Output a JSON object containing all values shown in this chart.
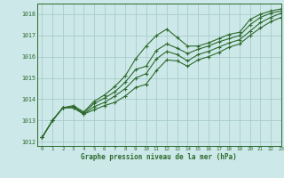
{
  "title": "Graphe pression niveau de la mer (hPa)",
  "background_color": "#cce8e8",
  "grid_color": "#aacccc",
  "line_color": "#2d6a2d",
  "marker_color": "#2d6a2d",
  "xlim": [
    -0.5,
    23
  ],
  "ylim": [
    1011.8,
    1018.5
  ],
  "xticks": [
    0,
    1,
    2,
    3,
    4,
    5,
    6,
    7,
    8,
    9,
    10,
    11,
    12,
    13,
    14,
    15,
    16,
    17,
    18,
    19,
    20,
    21,
    22,
    23
  ],
  "yticks": [
    1012,
    1013,
    1014,
    1015,
    1016,
    1017,
    1018
  ],
  "series": [
    [
      1012.2,
      1013.0,
      1013.6,
      1013.7,
      1013.4,
      1013.9,
      1014.2,
      1014.6,
      1015.1,
      1015.9,
      1016.5,
      1017.0,
      1017.3,
      1016.9,
      1016.5,
      1016.5,
      1016.65,
      1016.85,
      1017.05,
      1017.15,
      1017.75,
      1018.0,
      1018.15,
      1018.25
    ],
    [
      1012.2,
      1013.0,
      1013.6,
      1013.65,
      1013.35,
      1013.8,
      1014.05,
      1014.35,
      1014.8,
      1015.4,
      1015.55,
      1016.3,
      1016.6,
      1016.4,
      1016.15,
      1016.35,
      1016.5,
      1016.7,
      1016.85,
      1017.0,
      1017.5,
      1017.85,
      1018.05,
      1018.15
    ],
    [
      1012.2,
      1013.0,
      1013.6,
      1013.6,
      1013.3,
      1013.65,
      1013.85,
      1014.15,
      1014.5,
      1015.0,
      1015.2,
      1015.9,
      1016.25,
      1016.1,
      1015.8,
      1016.1,
      1016.25,
      1016.45,
      1016.65,
      1016.8,
      1017.2,
      1017.6,
      1017.85,
      1018.05
    ],
    [
      1012.2,
      1013.0,
      1013.6,
      1013.6,
      1013.3,
      1013.5,
      1013.7,
      1013.85,
      1014.15,
      1014.55,
      1014.7,
      1015.35,
      1015.85,
      1015.8,
      1015.55,
      1015.85,
      1016.0,
      1016.2,
      1016.45,
      1016.6,
      1017.0,
      1017.35,
      1017.65,
      1017.85
    ]
  ]
}
